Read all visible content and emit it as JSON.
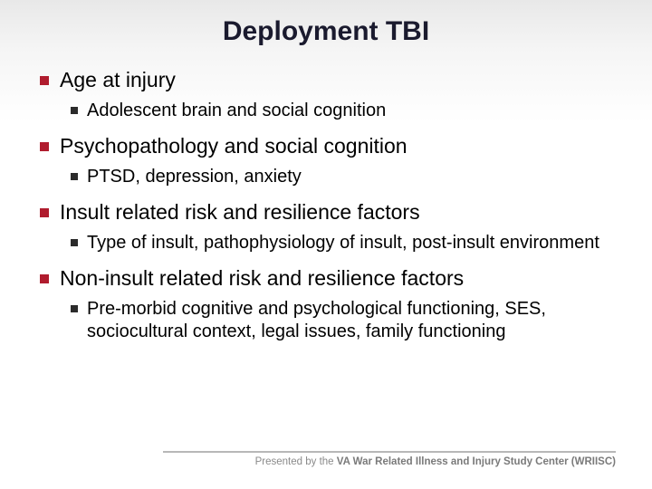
{
  "title": {
    "text": "Deployment TBI",
    "fontsize": 30,
    "color": "#1a1a2e",
    "weight": "bold"
  },
  "bullet_colors": {
    "level1": "#b01c2e",
    "level2": "#2b2b2b"
  },
  "text_sizes": {
    "level1": 23,
    "level2": 20
  },
  "items": [
    {
      "text": "Age at injury",
      "sub": [
        "Adolescent brain and social cognition"
      ]
    },
    {
      "text": "Psychopathology and social cognition",
      "sub": [
        "PTSD, depression, anxiety"
      ]
    },
    {
      "text": "Insult related risk and resilience factors",
      "sub": [
        "Type of insult, pathophysiology of insult, post-insult environment"
      ]
    },
    {
      "text": "Non-insult related risk and resilience factors",
      "sub": [
        "Pre-morbid cognitive and psychological functioning, SES, sociocultural context, legal issues, family functioning"
      ]
    }
  ],
  "footer": {
    "prefix": "Presented by the ",
    "org": "VA War Related Illness and Injury Study Center (WRIISC)",
    "line_color": "#b8b8b8",
    "text_color": "#8a8a8a"
  },
  "background": {
    "gradient_top": "#e8e8e8",
    "gradient_bottom": "#ffffff"
  }
}
